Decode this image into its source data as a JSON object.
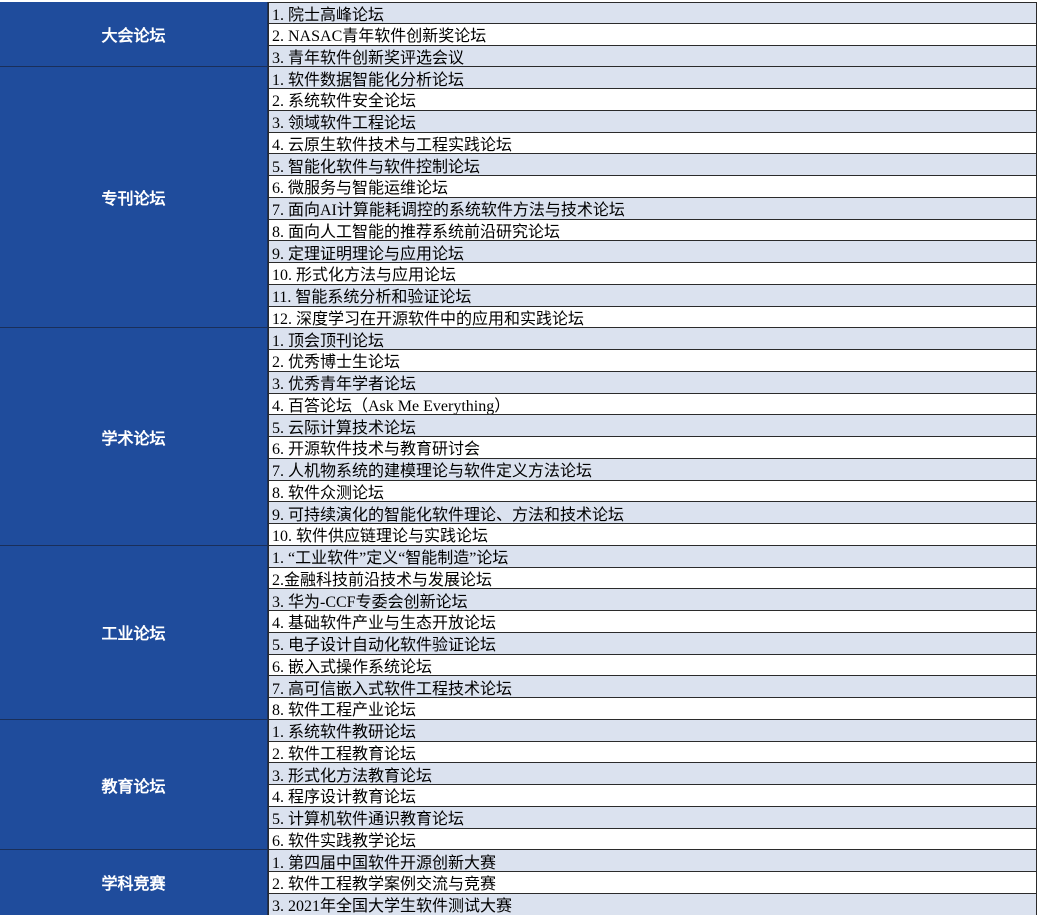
{
  "groups": [
    {
      "name": "大会论坛",
      "items": [
        "1. 院士高峰论坛",
        "2. NASAC青年软件创新奖论坛",
        "3. 青年软件创新奖评选会议"
      ]
    },
    {
      "name": "专刊论坛",
      "items": [
        "1. 软件数据智能化分析论坛",
        "2. 系统软件安全论坛",
        "3. 领域软件工程论坛",
        "4. 云原生软件技术与工程实践论坛",
        "5. 智能化软件与软件控制论坛",
        "6. 微服务与智能运维论坛",
        "7. 面向AI计算能耗调控的系统软件方法与技术论坛",
        "8. 面向人工智能的推荐系统前沿研究论坛",
        "9. 定理证明理论与应用论坛",
        "10. 形式化方法与应用论坛",
        "11. 智能系统分析和验证论坛",
        "12. 深度学习在开源软件中的应用和实践论坛"
      ]
    },
    {
      "name": "学术论坛",
      "items": [
        "1. 顶会顶刊论坛",
        "2. 优秀博士生论坛",
        "3. 优秀青年学者论坛",
        "4. 百答论坛（Ask Me Everything）",
        "5. 云际计算技术论坛",
        "6. 开源软件技术与教育研讨会",
        "7. 人机物系统的建模理论与软件定义方法论坛",
        "8. 软件众测论坛",
        "9. 可持续演化的智能化软件理论、方法和技术论坛",
        "10. 软件供应链理论与实践论坛"
      ]
    },
    {
      "name": "工业论坛",
      "items": [
        "1. “工业软件”定义“智能制造”论坛",
        "2.金融科技前沿技术与发展论坛",
        "3. 华为-CCF专委会创新论坛",
        "4. 基础软件产业与生态开放论坛",
        "5. 电子设计自动化软件验证论坛",
        "6. 嵌入式操作系统论坛",
        "7. 高可信嵌入式软件工程技术论坛",
        "8. 软件工程产业论坛"
      ]
    },
    {
      "name": "教育论坛",
      "items": [
        "1. 系统软件教研论坛",
        "2. 软件工程教育论坛",
        "3. 形式化方法教育论坛",
        "4. 程序设计教育论坛",
        "5. 计算机软件通识教育论坛",
        "6. 软件实践教学论坛"
      ]
    },
    {
      "name": "学科竞赛",
      "items": [
        "1. 第四届中国软件开源创新大赛",
        "2. 软件工程教学案例交流与竞赛",
        "3. 2021年全国大学生软件测试大赛"
      ]
    }
  ]
}
